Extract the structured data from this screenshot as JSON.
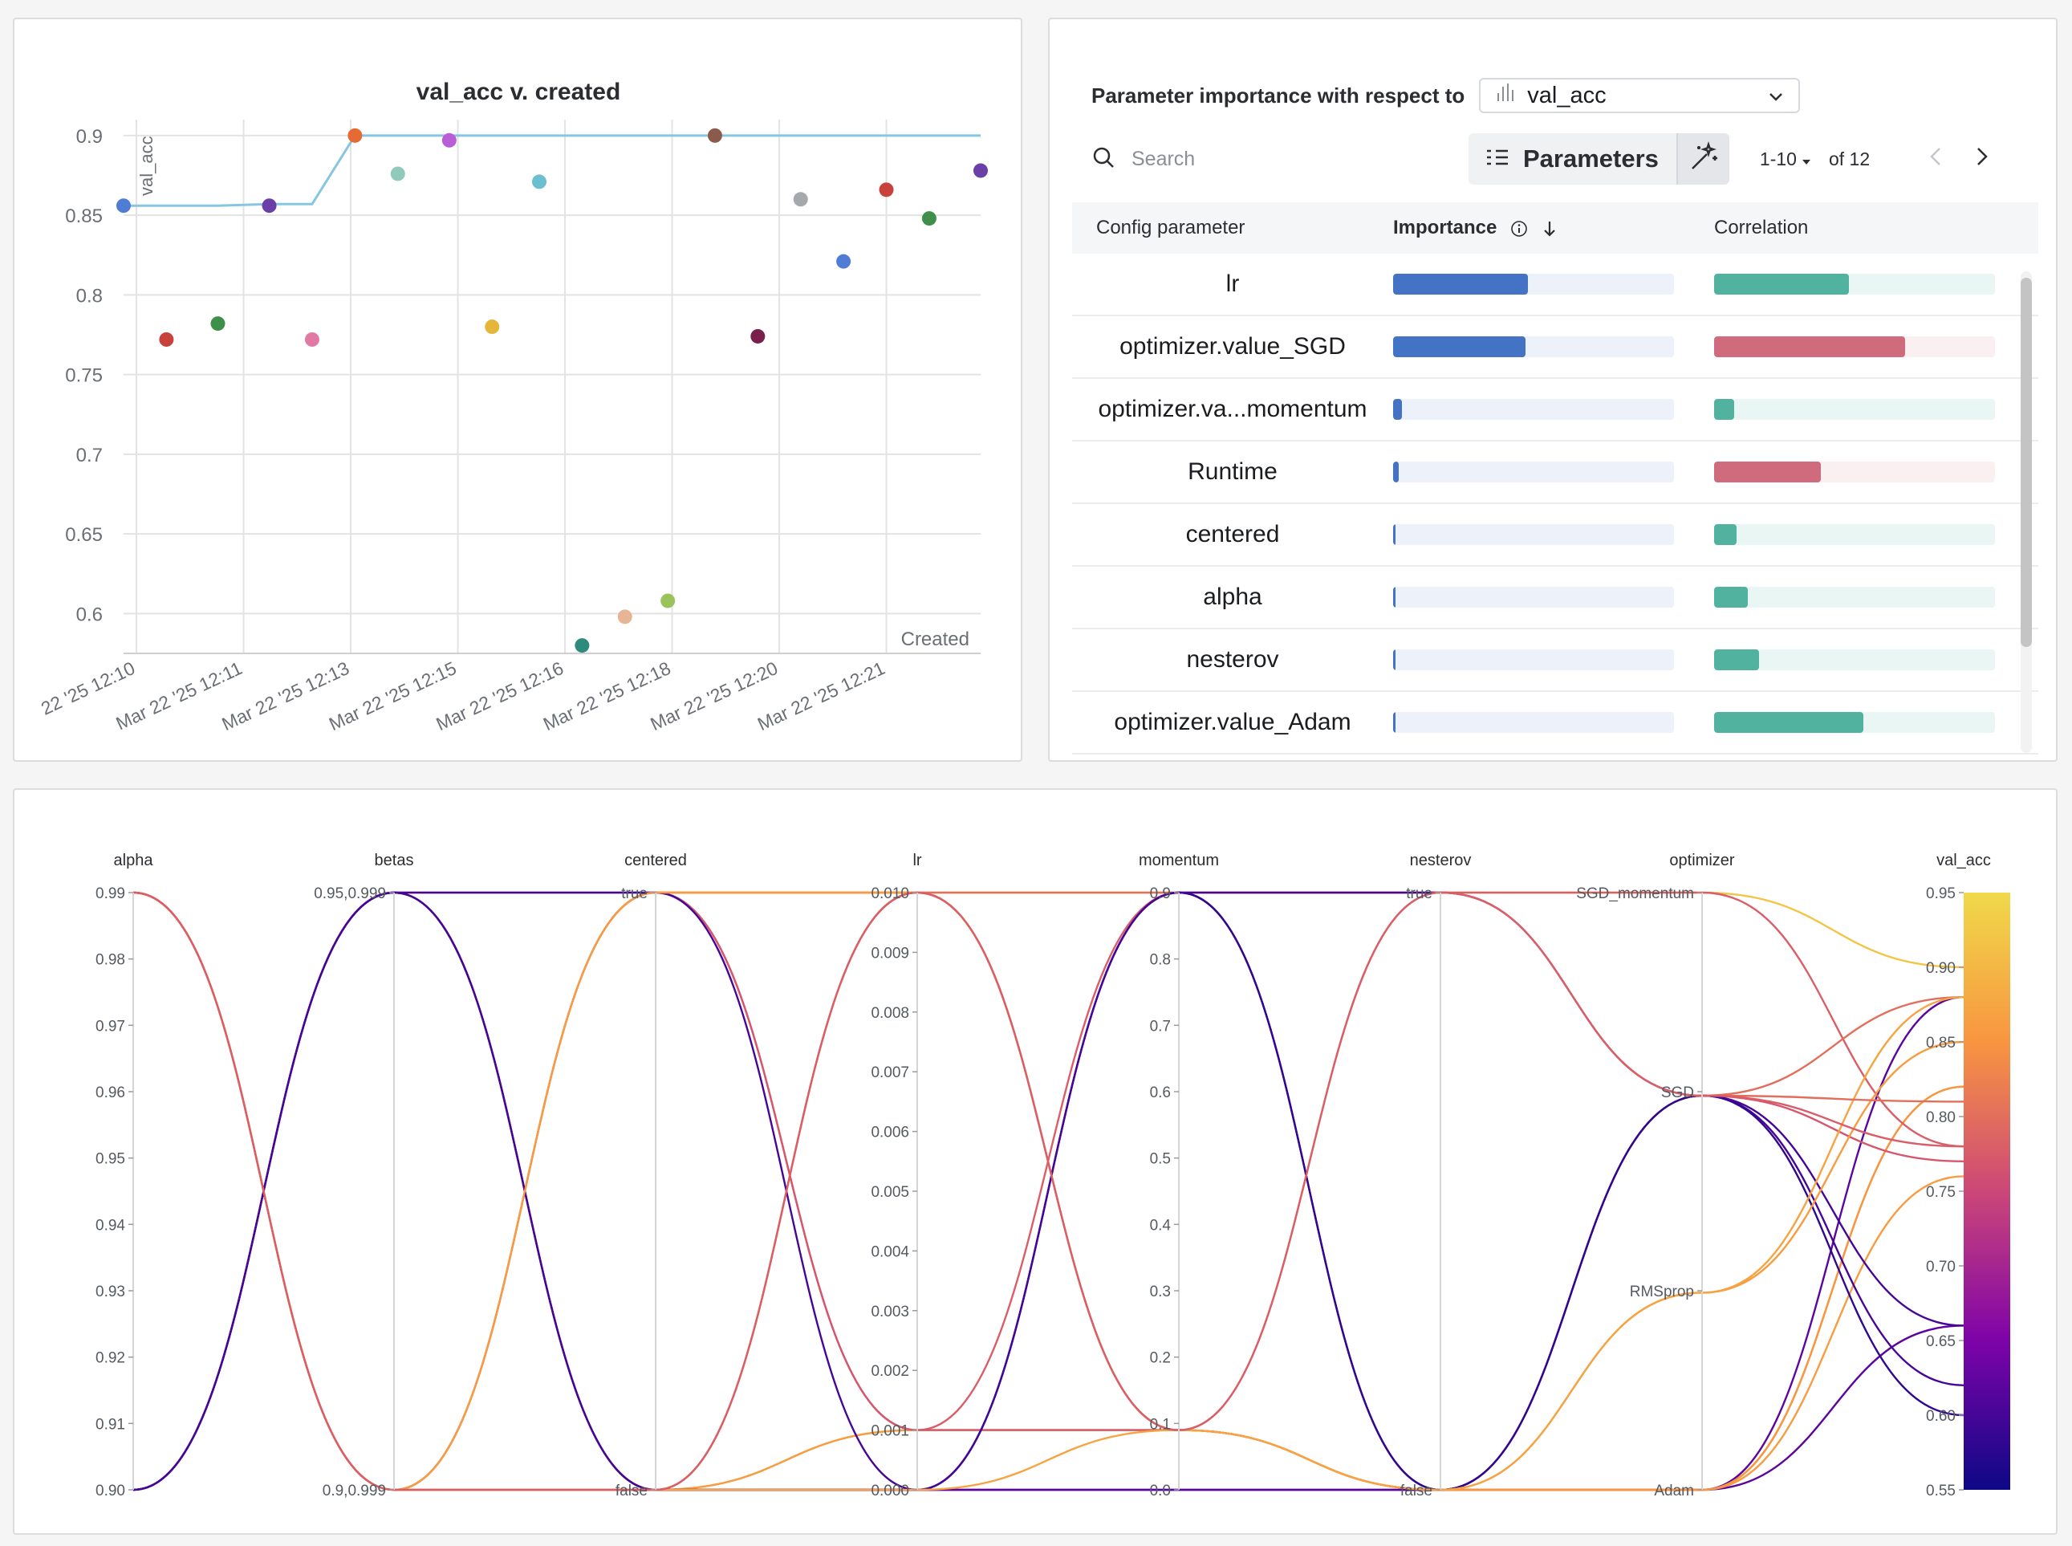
{
  "scatter_panel": {
    "chart_data": {
      "type": "scatter",
      "title": "val_acc v. created",
      "xlabel": "Created",
      "ylabel": "val_acc",
      "ylim": [
        0.575,
        0.91
      ],
      "y_ticks": [
        0.9,
        0.85,
        0.8,
        0.75,
        0.7,
        0.65,
        0.6
      ],
      "y_tick_labels": [
        "0.9",
        "0.85",
        "0.8",
        "0.75",
        "0.7",
        "0.65",
        "0.6"
      ],
      "x_tick_labels": [
        "22 '25 12:10",
        "Mar 22 '25 12:11",
        "Mar 22 '25 12:13",
        "Mar 22 '25 12:15",
        "Mar 22 '25 12:16",
        "Mar 22 '25 12:18",
        "Mar 22 '25 12:20",
        "Mar 22 '25 12:21"
      ],
      "x_unit": "run index",
      "x_ticks_at": [
        0.3,
        2.8,
        5.3,
        7.8,
        10.3,
        12.8,
        15.3,
        17.8
      ],
      "xlim": [
        0,
        20
      ],
      "grid": true,
      "points": [
        {
          "x": 0.0,
          "y": 0.856,
          "color": "#4f7dd6"
        },
        {
          "x": 1.0,
          "y": 0.772,
          "color": "#c8423b"
        },
        {
          "x": 2.2,
          "y": 0.782,
          "color": "#3e8f4a"
        },
        {
          "x": 3.4,
          "y": 0.856,
          "color": "#6a3fa8"
        },
        {
          "x": 4.4,
          "y": 0.772,
          "color": "#e07aa4"
        },
        {
          "x": 5.4,
          "y": 0.9,
          "color": "#e56a34"
        },
        {
          "x": 6.4,
          "y": 0.876,
          "color": "#8fcbb8"
        },
        {
          "x": 7.6,
          "y": 0.897,
          "color": "#b85ed6"
        },
        {
          "x": 8.6,
          "y": 0.78,
          "color": "#e5b63a"
        },
        {
          "x": 9.7,
          "y": 0.871,
          "color": "#6bbfcf"
        },
        {
          "x": 10.7,
          "y": 0.58,
          "color": "#2f8a7e"
        },
        {
          "x": 11.7,
          "y": 0.598,
          "color": "#e8b594"
        },
        {
          "x": 12.7,
          "y": 0.608,
          "color": "#9ac45a"
        },
        {
          "x": 13.8,
          "y": 0.9,
          "color": "#8a5a4a"
        },
        {
          "x": 14.8,
          "y": 0.774,
          "color": "#7a1f4c"
        },
        {
          "x": 15.8,
          "y": 0.86,
          "color": "#a5a8ad"
        },
        {
          "x": 16.8,
          "y": 0.821,
          "color": "#4f7dd6"
        },
        {
          "x": 17.8,
          "y": 0.866,
          "color": "#c8423b"
        },
        {
          "x": 18.8,
          "y": 0.848,
          "color": "#3e8f4a"
        },
        {
          "x": 20.0,
          "y": 0.878,
          "color": "#6a3fa8"
        }
      ],
      "best_line": {
        "color": "#87c6e3",
        "points": [
          [
            0.0,
            0.856
          ],
          [
            1.0,
            0.856
          ],
          [
            2.2,
            0.856
          ],
          [
            3.4,
            0.857
          ],
          [
            4.4,
            0.857
          ],
          [
            5.4,
            0.9
          ],
          [
            20.0,
            0.9
          ]
        ]
      }
    }
  },
  "importance_panel": {
    "header_label": "Parameter importance with respect to",
    "metric": "val_acc",
    "search_placeholder": "Search",
    "params_button": "Parameters",
    "pager_range": "1-10",
    "pager_total": "of 12",
    "col_config": "Config parameter",
    "col_importance": "Importance",
    "col_correlation": "Correlation",
    "colors": {
      "importance": "#4472c4",
      "importance_track": "#edf1f9",
      "pos": "#52b2a0",
      "pos_track": "#eaf6f3",
      "neg": "#d06a7d",
      "neg_track": "#faf0f1"
    },
    "rows": [
      {
        "name": "lr",
        "importance": 0.48,
        "correlation": 0.48,
        "sign": "pos"
      },
      {
        "name": "optimizer.value_SGD",
        "importance": 0.47,
        "correlation": 0.68,
        "sign": "neg"
      },
      {
        "name": "optimizer.va...momentum",
        "importance": 0.03,
        "correlation": 0.07,
        "sign": "pos"
      },
      {
        "name": "Runtime",
        "importance": 0.02,
        "correlation": 0.38,
        "sign": "neg"
      },
      {
        "name": "centered",
        "importance": 0.008,
        "correlation": 0.08,
        "sign": "pos"
      },
      {
        "name": "alpha",
        "importance": 0.008,
        "correlation": 0.12,
        "sign": "pos"
      },
      {
        "name": "nesterov",
        "importance": 0.008,
        "correlation": 0.16,
        "sign": "pos"
      },
      {
        "name": "optimizer.value_Adam",
        "importance": 0.008,
        "correlation": 0.53,
        "sign": "pos"
      }
    ]
  },
  "parallel_panel": {
    "chart_data": {
      "type": "parallel_coordinates",
      "axes": [
        {
          "name": "alpha",
          "ticks": [
            "0.99",
            "0.98",
            "0.97",
            "0.96",
            "0.95",
            "0.94",
            "0.93",
            "0.92",
            "0.91",
            "0.90"
          ]
        },
        {
          "name": "betas",
          "ticks": [
            "0.95,0.999",
            "0.9,0.999"
          ]
        },
        {
          "name": "centered",
          "ticks": [
            "true",
            "false"
          ]
        },
        {
          "name": "lr",
          "ticks": [
            "0.010",
            "0.009",
            "0.008",
            "0.007",
            "0.006",
            "0.005",
            "0.004",
            "0.003",
            "0.002",
            "0.001",
            "0.000"
          ]
        },
        {
          "name": "momentum",
          "ticks": [
            "0.9",
            "0.8",
            "0.7",
            "0.6",
            "0.5",
            "0.4",
            "0.3",
            "0.2",
            "0.1",
            "0.0"
          ]
        },
        {
          "name": "nesterov",
          "ticks": [
            "true",
            "false"
          ]
        },
        {
          "name": "optimizer",
          "ticks": [
            "SGD_momentum",
            "SGD",
            "RMSprop",
            "Adam"
          ]
        },
        {
          "name": "val_acc",
          "ticks": [
            "0.95",
            "0.90",
            "0.85",
            "0.80",
            "0.75",
            "0.70",
            "0.65",
            "0.60",
            "0.55"
          ]
        }
      ],
      "color_metric": "val_acc",
      "color_range": [
        0.55,
        0.95
      ],
      "runs": [
        {
          "v": [
            0,
            1,
            0,
            0,
            0,
            0,
            0,
            0.88
          ],
          "c": 0.62
        },
        {
          "v": [
            0,
            1,
            0,
            0,
            0,
            0,
            0,
            0.66
          ],
          "c": 0.62
        },
        {
          "v": [
            0,
            1,
            0,
            0.1,
            0.1,
            0,
            0,
            0.82
          ],
          "c": 0.88
        },
        {
          "v": [
            0,
            1,
            0,
            0.1,
            0.1,
            0,
            0,
            0.76
          ],
          "c": 0.86
        },
        {
          "v": [
            1,
            0,
            0,
            1,
            0.1,
            0,
            0,
            0.82
          ],
          "c": 0.85
        },
        {
          "v": [
            1,
            0,
            1,
            1,
            1,
            1,
            1,
            0.9
          ],
          "c": 0.92
        },
        {
          "v": [
            1,
            0,
            1,
            0.1,
            1,
            1,
            1,
            0.78
          ],
          "c": 0.78
        },
        {
          "v": [
            1,
            0,
            1,
            0.1,
            0.1,
            0,
            0.66,
            0.77
          ],
          "c": 0.77
        },
        {
          "v": [
            0,
            1,
            1,
            1,
            1,
            0,
            0.66,
            0.88
          ],
          "c": 0.8
        },
        {
          "v": [
            0,
            1,
            1,
            0,
            1,
            0,
            0.66,
            0.62
          ],
          "c": 0.6
        },
        {
          "v": [
            0,
            1,
            0,
            0,
            1,
            0,
            0.66,
            0.6
          ],
          "c": 0.58
        },
        {
          "v": [
            0,
            1,
            0,
            0,
            1,
            1,
            0.66,
            0.66
          ],
          "c": 0.6
        },
        {
          "v": [
            1,
            0,
            1,
            1,
            0.1,
            0,
            0.33,
            0.85
          ],
          "c": 0.86
        },
        {
          "v": [
            1,
            0,
            0,
            0,
            0.1,
            0,
            0.33,
            0.88
          ],
          "c": 0.87
        },
        {
          "v": [
            1,
            0,
            0,
            1,
            0.1,
            1,
            0.66,
            0.81
          ],
          "c": 0.8
        },
        {
          "v": [
            1,
            0,
            0,
            1,
            0.1,
            1,
            0.66,
            0.78
          ],
          "c": 0.78
        }
      ]
    }
  }
}
